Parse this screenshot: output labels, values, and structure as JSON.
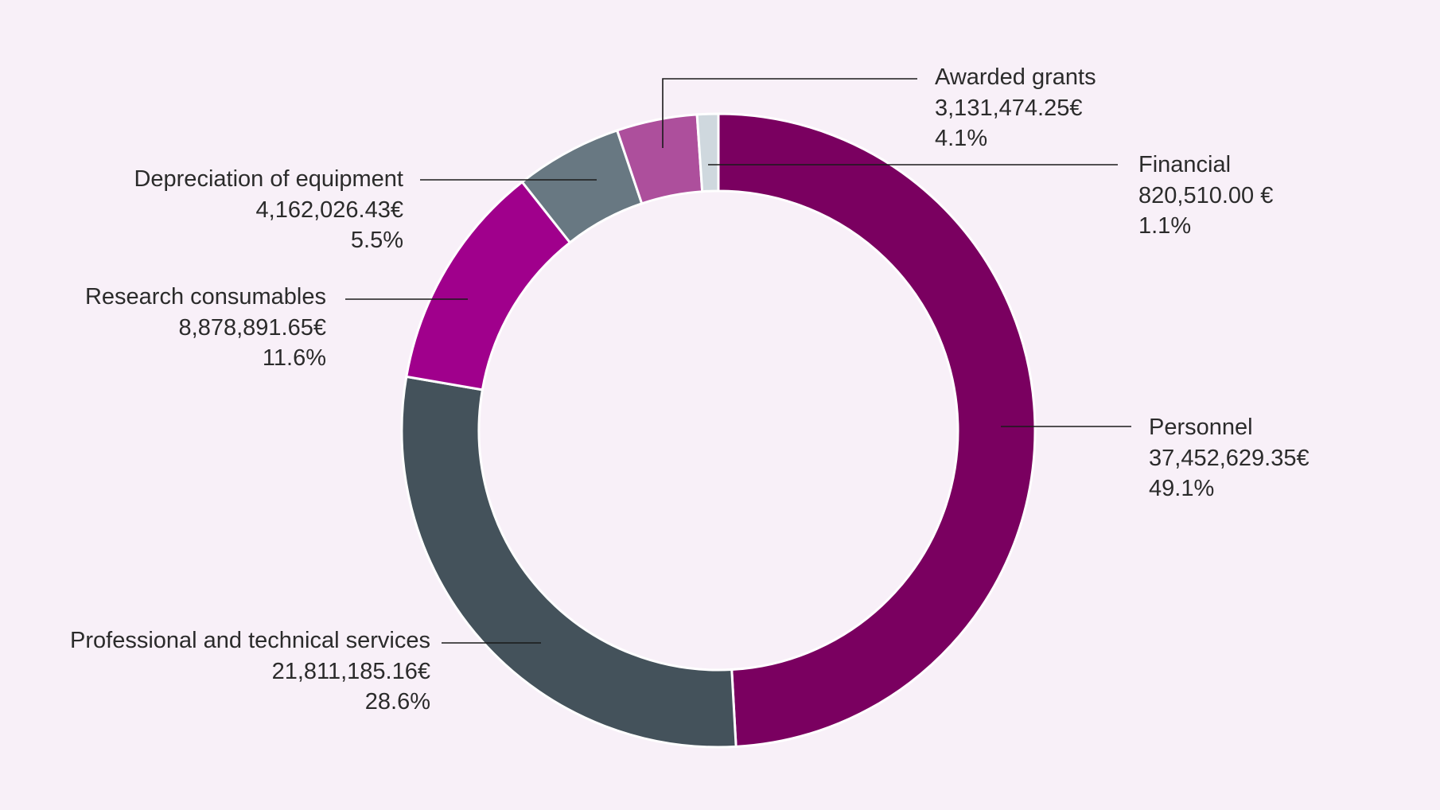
{
  "chart_data": {
    "type": "pie",
    "donut": true,
    "title": "",
    "slices": [
      {
        "label": "Personnel",
        "amount": "37,452,629.35€",
        "percent_label": "49.1%",
        "value": 37452629.35,
        "color": "#7a0060"
      },
      {
        "label": "Professional and technical services",
        "amount": "21,811,185.16€",
        "percent_label": "28.6%",
        "value": 21811185.16,
        "color": "#44525b"
      },
      {
        "label": "Research consumables",
        "amount": "8,878,891.65€",
        "percent_label": "11.6%",
        "value": 8878891.65,
        "color": "#a0008c"
      },
      {
        "label": "Depreciation of equipment",
        "amount": "4,162,026.43€",
        "percent_label": "5.5%",
        "value": 4162026.43,
        "color": "#687882"
      },
      {
        "label": "Awarded grants",
        "amount": "3,131,474.25€",
        "percent_label": "4.1%",
        "value": 3131474.25,
        "color": "#ad4f9c"
      },
      {
        "label": "Financial",
        "amount": "820,510.00 €",
        "percent_label": "1.1%",
        "value": 820510.0,
        "color": "#cfd8de"
      }
    ]
  }
}
